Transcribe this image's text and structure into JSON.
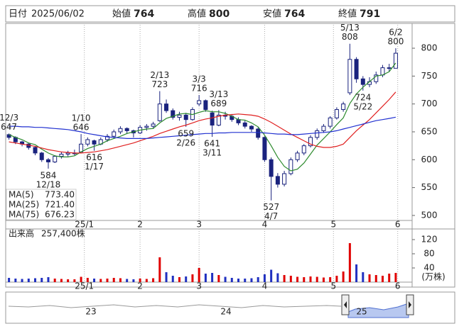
{
  "header": {
    "date_label": "日付",
    "date": "2025/06/02",
    "fields": [
      {
        "label": "始値",
        "value": 764,
        "color": "#000000"
      },
      {
        "label": "高値",
        "value": 800,
        "color": "#e00000"
      },
      {
        "label": "安値",
        "value": 764,
        "color": "#008000"
      },
      {
        "label": "終値",
        "value": 791,
        "color": "#000000"
      }
    ]
  },
  "chart_data": [
    {
      "type": "candlestick",
      "up_color": "#ffffff",
      "down_color": "#1a237e",
      "edge_color": "#1a237e",
      "open": [
        645,
        640,
        632,
        628,
        622,
        612,
        600,
        596,
        606,
        610,
        612,
        614,
        628,
        634,
        628,
        636,
        642,
        650,
        656,
        652,
        648,
        658,
        660,
        670,
        700,
        688,
        676,
        680,
        672,
        700,
        706,
        684,
        662,
        680,
        678,
        672,
        666,
        660,
        655,
        640,
        600,
        570,
        556,
        575,
        600,
        612,
        625,
        640,
        652,
        660,
        675,
        690,
        720,
        780,
        745,
        735,
        740,
        752,
        765,
        764
      ],
      "high": [
        647,
        642,
        634,
        630,
        624,
        614,
        603,
        608,
        614,
        616,
        618,
        646,
        640,
        636,
        640,
        646,
        654,
        660,
        658,
        654,
        662,
        664,
        668,
        723,
        708,
        692,
        686,
        684,
        694,
        716,
        708,
        688,
        689,
        686,
        682,
        676,
        670,
        662,
        658,
        642,
        604,
        576,
        580,
        604,
        616,
        628,
        644,
        656,
        664,
        678,
        694,
        704,
        808,
        784,
        750,
        748,
        758,
        770,
        772,
        800
      ],
      "low": [
        636,
        628,
        624,
        618,
        608,
        596,
        584,
        594,
        602,
        606,
        608,
        612,
        624,
        616,
        626,
        632,
        638,
        646,
        646,
        640,
        646,
        652,
        656,
        668,
        684,
        672,
        670,
        659,
        670,
        696,
        686,
        641,
        660,
        672,
        668,
        662,
        656,
        650,
        636,
        596,
        527,
        550,
        552,
        572,
        596,
        608,
        622,
        636,
        648,
        656,
        672,
        686,
        716,
        738,
        724,
        730,
        736,
        748,
        758,
        764
      ],
      "close": [
        640,
        632,
        628,
        622,
        612,
        600,
        596,
        606,
        610,
        612,
        612,
        628,
        636,
        628,
        636,
        642,
        650,
        656,
        652,
        648,
        658,
        660,
        664,
        700,
        688,
        676,
        680,
        672,
        690,
        706,
        690,
        662,
        680,
        678,
        672,
        666,
        660,
        655,
        640,
        600,
        570,
        556,
        575,
        600,
        612,
        625,
        640,
        652,
        660,
        675,
        690,
        700,
        780,
        745,
        735,
        740,
        752,
        765,
        765,
        791
      ],
      "lines": [
        {
          "name": "MA(5)",
          "color": "#2e8b2e",
          "latest": {
            "value": 773.4,
            "label": "773.40"
          },
          "values": [
            645,
            640,
            636,
            630,
            627,
            619,
            612,
            607,
            605,
            605,
            607,
            614,
            620,
            624,
            628,
            634,
            638,
            642,
            647,
            650,
            653,
            655,
            656,
            666,
            674,
            678,
            682,
            683,
            681,
            685,
            688,
            686,
            686,
            683,
            678,
            672,
            671,
            666,
            659,
            644,
            625,
            604,
            588,
            580,
            583,
            594,
            610,
            626,
            638,
            650,
            663,
            675,
            701,
            718,
            730,
            740,
            750,
            752,
            758,
            773.4
          ]
        },
        {
          "name": "MA(25)",
          "color": "#e02020",
          "latest": {
            "value": 721.4,
            "label": "721.40"
          },
          "values": [
            632,
            630,
            628,
            626,
            624,
            621,
            618,
            616,
            614,
            613,
            612,
            612,
            613,
            614,
            616,
            618,
            621,
            624,
            627,
            630,
            634,
            638,
            642,
            647,
            651,
            655,
            659,
            662,
            666,
            670,
            673,
            675,
            678,
            680,
            681,
            682,
            681,
            680,
            678,
            673,
            667,
            660,
            653,
            646,
            640,
            634,
            628,
            624,
            622,
            622,
            624,
            628,
            640,
            652,
            662,
            672,
            684,
            696,
            708,
            721.4
          ]
        },
        {
          "name": "MA(75)",
          "color": "#2030d0",
          "latest": {
            "value": 676.23,
            "label": "676.23"
          },
          "values": [
            660,
            660,
            659,
            659,
            658,
            658,
            657,
            656,
            655,
            654,
            652,
            650,
            647,
            645,
            643,
            641,
            640,
            639,
            638,
            638,
            638,
            638,
            639,
            640,
            641,
            642,
            643,
            644,
            645,
            646,
            647,
            647,
            648,
            648,
            649,
            649,
            649,
            649,
            649,
            648,
            647,
            646,
            646,
            645,
            645,
            646,
            647,
            648,
            649,
            650,
            652,
            655,
            658,
            661,
            664,
            667,
            670,
            672,
            674,
            676.23
          ]
        }
      ],
      "annotations": [
        {
          "kind": "high",
          "value": 647,
          "date": "12/3"
        },
        {
          "kind": "low",
          "value": 584,
          "date": "12/18"
        },
        {
          "kind": "high",
          "value": 646,
          "date": "1/10"
        },
        {
          "kind": "low",
          "value": 616,
          "date": "1/17"
        },
        {
          "kind": "high",
          "value": 723,
          "date": "2/13"
        },
        {
          "kind": "low",
          "value": 659,
          "date": "2/26"
        },
        {
          "kind": "high",
          "value": 716,
          "date": "3/3"
        },
        {
          "kind": "low",
          "value": 641,
          "date": "3/11"
        },
        {
          "kind": "high",
          "value": 689,
          "date": "3/13"
        },
        {
          "kind": "low",
          "value": 527,
          "date": "4/7"
        },
        {
          "kind": "high",
          "value": 808,
          "date": "5/13"
        },
        {
          "kind": "low",
          "value": 724,
          "date": "5/22"
        },
        {
          "kind": "high",
          "value": 800,
          "date": "6/2"
        }
      ],
      "xlim": [
        -0.5,
        61.5
      ],
      "xticks": [
        {
          "value": 11.5,
          "label": "25/1"
        },
        {
          "value": 20,
          "label": "2"
        },
        {
          "value": 29,
          "label": "3"
        },
        {
          "value": 39,
          "label": "4"
        },
        {
          "value": 49.5,
          "label": "5"
        },
        {
          "value": 59.3,
          "label": "6"
        }
      ],
      "ylim": [
        491,
        842
      ],
      "yticks": [
        500,
        550,
        600,
        650,
        700,
        750,
        800
      ],
      "grid": true
    },
    {
      "type": "bar",
      "title": "出来高",
      "current": {
        "value": 257400,
        "label": "257,400株"
      },
      "unit": "(万株)",
      "up_color": "#e00000",
      "down_color": "#2030c0",
      "values": [
        12,
        10,
        9,
        10,
        11,
        12,
        14,
        10,
        9,
        8,
        8,
        15,
        12,
        10,
        9,
        10,
        12,
        11,
        9,
        8,
        10,
        9,
        11,
        70,
        28,
        18,
        14,
        16,
        22,
        40,
        24,
        26,
        20,
        15,
        12,
        10,
        10,
        11,
        14,
        22,
        35,
        25,
        20,
        18,
        15,
        14,
        16,
        15,
        13,
        14,
        18,
        30,
        110,
        50,
        28,
        22,
        20,
        18,
        24,
        26
      ],
      "xlim": [
        -0.5,
        61.5
      ],
      "xticks": [
        {
          "value": 11.5,
          "label": "25/1"
        },
        {
          "value": 20,
          "label": "2"
        },
        {
          "value": 29,
          "label": "3"
        },
        {
          "value": 39,
          "label": "4"
        },
        {
          "value": 49.5,
          "label": "5"
        },
        {
          "value": 59.3,
          "label": "6"
        }
      ],
      "ylim": [
        0,
        150
      ],
      "yticks": [
        40,
        80,
        120
      ],
      "grid": true
    }
  ],
  "navigator": {
    "labels": [
      "23",
      "24",
      "25"
    ]
  }
}
